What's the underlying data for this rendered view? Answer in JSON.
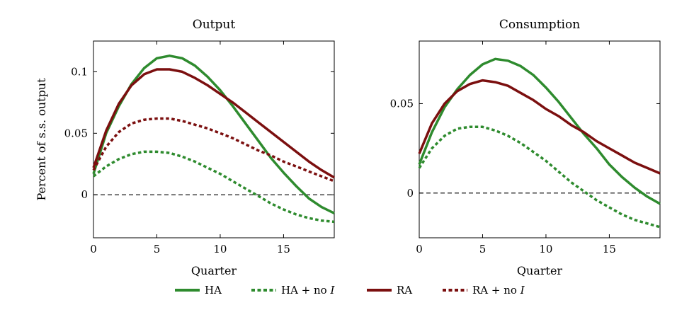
{
  "chart_data": [
    {
      "type": "line",
      "title": "Output",
      "xlabel": "Quarter",
      "ylabel": "Percent of s.s. output",
      "xlim": [
        0,
        19
      ],
      "ylim": [
        -0.035,
        0.125
      ],
      "xticks": [
        0,
        5,
        10,
        15
      ],
      "xtick_labels": [
        "0",
        "5",
        "10",
        "15"
      ],
      "yticks": [
        0,
        0.05,
        0.1
      ],
      "ytick_labels": [
        "0",
        "0.05",
        "0.1"
      ],
      "zero_line": true,
      "grid": false,
      "x": [
        0,
        1,
        2,
        3,
        4,
        5,
        6,
        7,
        8,
        9,
        10,
        11,
        12,
        13,
        14,
        15,
        16,
        17,
        18,
        19
      ],
      "series": [
        {
          "name": "HA",
          "color": "#2e8b2e",
          "style": "solid",
          "values": [
            0.017,
            0.05,
            0.072,
            0.09,
            0.103,
            0.111,
            0.113,
            0.111,
            0.105,
            0.096,
            0.085,
            0.072,
            0.058,
            0.044,
            0.03,
            0.018,
            0.007,
            -0.003,
            -0.01,
            -0.015
          ]
        },
        {
          "name": "HA + no I",
          "color": "#2e8b2e",
          "style": "dashed",
          "values": [
            0.015,
            0.023,
            0.029,
            0.033,
            0.035,
            0.035,
            0.034,
            0.031,
            0.027,
            0.022,
            0.017,
            0.011,
            0.005,
            -0.001,
            -0.007,
            -0.012,
            -0.016,
            -0.019,
            -0.021,
            -0.022
          ]
        },
        {
          "name": "RA",
          "color": "#7b0f0f",
          "style": "solid",
          "values": [
            0.022,
            0.052,
            0.074,
            0.089,
            0.098,
            0.102,
            0.102,
            0.1,
            0.095,
            0.089,
            0.082,
            0.075,
            0.067,
            0.059,
            0.051,
            0.043,
            0.035,
            0.027,
            0.02,
            0.014
          ]
        },
        {
          "name": "RA + no I",
          "color": "#7b0f0f",
          "style": "dashed",
          "values": [
            0.02,
            0.039,
            0.051,
            0.058,
            0.061,
            0.062,
            0.062,
            0.06,
            0.057,
            0.054,
            0.05,
            0.046,
            0.041,
            0.036,
            0.032,
            0.027,
            0.023,
            0.019,
            0.015,
            0.011
          ]
        }
      ]
    },
    {
      "type": "line",
      "title": "Consumption",
      "xlabel": "Quarter",
      "ylabel": "",
      "xlim": [
        0,
        19
      ],
      "ylim": [
        -0.025,
        0.085
      ],
      "xticks": [
        0,
        5,
        10,
        15
      ],
      "xtick_labels": [
        "0",
        "5",
        "10",
        "15"
      ],
      "yticks": [
        0,
        0.05
      ],
      "ytick_labels": [
        "0",
        "0.05"
      ],
      "zero_line": true,
      "grid": false,
      "x": [
        0,
        1,
        2,
        3,
        4,
        5,
        6,
        7,
        8,
        9,
        10,
        11,
        12,
        13,
        14,
        15,
        16,
        17,
        18,
        19
      ],
      "series": [
        {
          "name": "HA",
          "color": "#2e8b2e",
          "style": "solid",
          "values": [
            0.016,
            0.034,
            0.048,
            0.058,
            0.066,
            0.072,
            0.075,
            0.074,
            0.071,
            0.066,
            0.059,
            0.051,
            0.042,
            0.033,
            0.025,
            0.016,
            0.009,
            0.003,
            -0.002,
            -0.006
          ]
        },
        {
          "name": "HA + no I",
          "color": "#2e8b2e",
          "style": "dashed",
          "values": [
            0.014,
            0.025,
            0.032,
            0.036,
            0.037,
            0.037,
            0.035,
            0.032,
            0.028,
            0.023,
            0.018,
            0.012,
            0.006,
            0.001,
            -0.004,
            -0.008,
            -0.012,
            -0.015,
            -0.017,
            -0.019
          ]
        },
        {
          "name": "RA",
          "color": "#7b0f0f",
          "style": "solid",
          "values": [
            0.022,
            0.039,
            0.05,
            0.057,
            0.061,
            0.063,
            0.062,
            0.06,
            0.056,
            0.052,
            0.047,
            0.043,
            0.038,
            0.034,
            0.029,
            0.025,
            0.021,
            0.017,
            0.014,
            0.011
          ]
        }
      ]
    }
  ],
  "legend": {
    "placement": "bottom",
    "entries": [
      {
        "label": "HA",
        "italic_suffix": "",
        "color": "#2e8b2e",
        "style": "solid"
      },
      {
        "label": "HA + no ",
        "italic_suffix": "I",
        "color": "#2e8b2e",
        "style": "dashed"
      },
      {
        "label": "RA",
        "italic_suffix": "",
        "color": "#7b0f0f",
        "style": "solid"
      },
      {
        "label": "RA + no ",
        "italic_suffix": "I",
        "color": "#7b0f0f",
        "style": "dashed"
      }
    ]
  }
}
